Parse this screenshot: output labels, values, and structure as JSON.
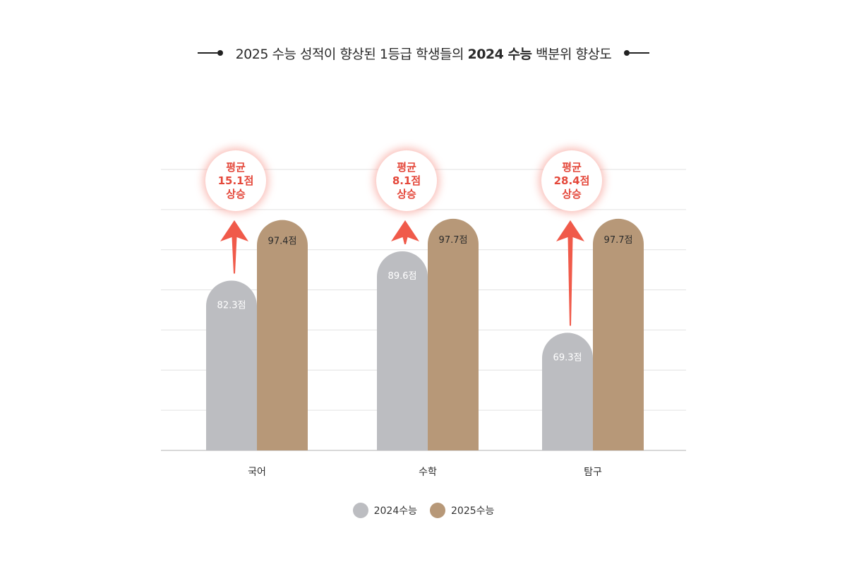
{
  "title": {
    "prefix": "2025 수능 성적이 향상된 1등급 학생들의 ",
    "emphasis": "2024 수능",
    "suffix": " 백분위 향상도"
  },
  "colors": {
    "series_2024": "#bcbdc1",
    "series_2025": "#b79878",
    "arrow": "#f05a4a",
    "badge_text": "#e4473a",
    "grid": "#e2e2e2",
    "axis": "#cccccc"
  },
  "chart_data": {
    "type": "bar",
    "categories": [
      "국어",
      "수학",
      "탐구"
    ],
    "series": [
      {
        "name": "2024수능",
        "values": [
          82.3,
          89.6,
          69.3
        ],
        "labels": [
          "82.3점",
          "89.6점",
          "69.3점"
        ]
      },
      {
        "name": "2025수능",
        "values": [
          97.4,
          97.7,
          97.7
        ],
        "labels": [
          "97.4점",
          "97.7점",
          "97.7점"
        ]
      }
    ],
    "annotations": [
      {
        "category": "국어",
        "line1": "평균",
        "line2": "15.1점",
        "line3": "상승",
        "change": 15.1
      },
      {
        "category": "수학",
        "line1": "평균",
        "line2": "8.1점",
        "line3": "상승",
        "change": 8.1
      },
      {
        "category": "탐구",
        "line1": "평균",
        "line2": "28.4점",
        "line3": "상승",
        "change": 28.4
      }
    ],
    "ylim": [
      40,
      110
    ],
    "grid": true,
    "legend_position": "bottom-center"
  }
}
